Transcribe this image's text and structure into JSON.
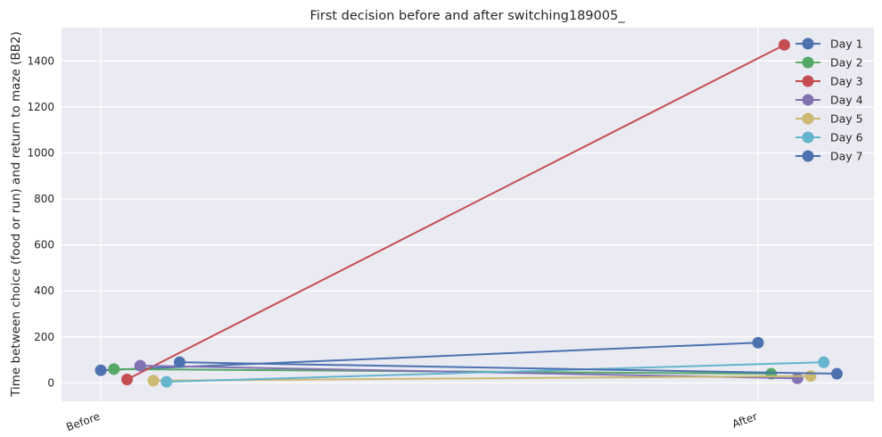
{
  "chart_data": {
    "type": "line",
    "title": "First decision before and after switching189005_",
    "xlabel": "",
    "ylabel": "Time between choice (food or run) and return to maze (BB2)",
    "categories": [
      "Before",
      "After"
    ],
    "ylim": [
      -80,
      1545
    ],
    "yticks": [
      0,
      200,
      400,
      600,
      800,
      1000,
      1200,
      1400
    ],
    "grid": true,
    "legend_position": "top-right",
    "series": [
      {
        "name": "Day 1",
        "color": "#4c72b0",
        "x": [
          0.0,
          1.0
        ],
        "values": [
          55,
          175
        ]
      },
      {
        "name": "Day 2",
        "color": "#55a868",
        "x": [
          0.02,
          1.02
        ],
        "values": [
          60,
          40
        ]
      },
      {
        "name": "Day 3",
        "color": "#c44e52",
        "x": [
          0.04,
          1.04
        ],
        "values": [
          15,
          1470
        ]
      },
      {
        "name": "Day 4",
        "color": "#8172b2",
        "x": [
          0.06,
          1.06
        ],
        "values": [
          75,
          20
        ]
      },
      {
        "name": "Day 5",
        "color": "#ccb974",
        "x": [
          0.08,
          1.08
        ],
        "values": [
          10,
          30
        ]
      },
      {
        "name": "Day 6",
        "color": "#64b5cd",
        "x": [
          0.1,
          1.1
        ],
        "values": [
          5,
          90
        ]
      },
      {
        "name": "Day 7",
        "color": "#4c72b0",
        "x": [
          0.12,
          1.12
        ],
        "values": [
          90,
          40
        ]
      }
    ]
  }
}
